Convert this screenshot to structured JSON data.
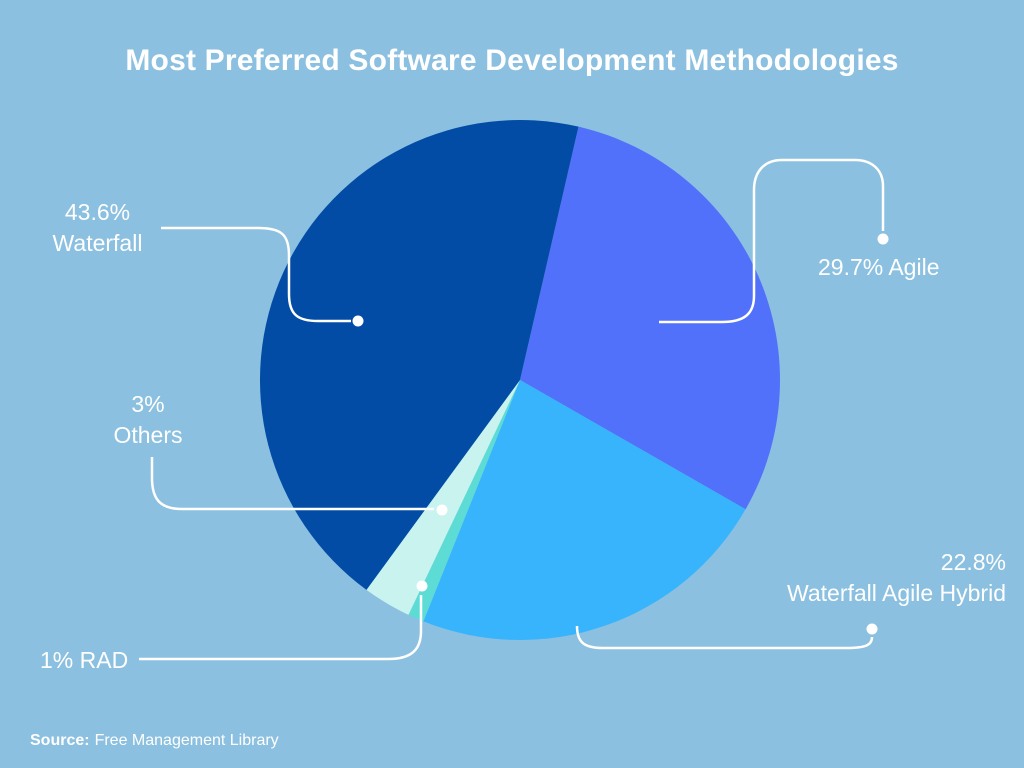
{
  "chart_data": {
    "type": "pie",
    "title": "Most Preferred Software Development Methodologies",
    "start_angle_deg": 13,
    "grid": false,
    "legend_position": "callout-labels",
    "slices": [
      {
        "name": "Agile",
        "value": 29.7,
        "color": "#5271FA"
      },
      {
        "name": "Waterfall Agile Hybrid",
        "value": 22.8,
        "color": "#38B4FC"
      },
      {
        "name": "RAD",
        "value": 1,
        "color": "#5CDCD4"
      },
      {
        "name": "Others",
        "value": 3,
        "color": "#C8F3EF"
      },
      {
        "name": "Waterfall",
        "value": 43.6,
        "color": "#024CA6"
      }
    ],
    "callouts": {
      "waterfall": {
        "lines": [
          "43.6%",
          "Waterfall"
        ]
      },
      "agile": {
        "lines": [
          "29.7% Agile"
        ]
      },
      "others": {
        "lines": [
          "3%",
          "Others"
        ]
      },
      "rad": {
        "lines": [
          "1% RAD"
        ]
      },
      "hybrid": {
        "lines": [
          "22.8%",
          "Waterfall Agile Hybrid"
        ]
      }
    }
  },
  "source": {
    "label": "Source:",
    "value": "Free Management Library"
  },
  "colors": {
    "background": "#8BC0E0",
    "text": "#FFFFFF",
    "connector": "#FFFFFF"
  }
}
